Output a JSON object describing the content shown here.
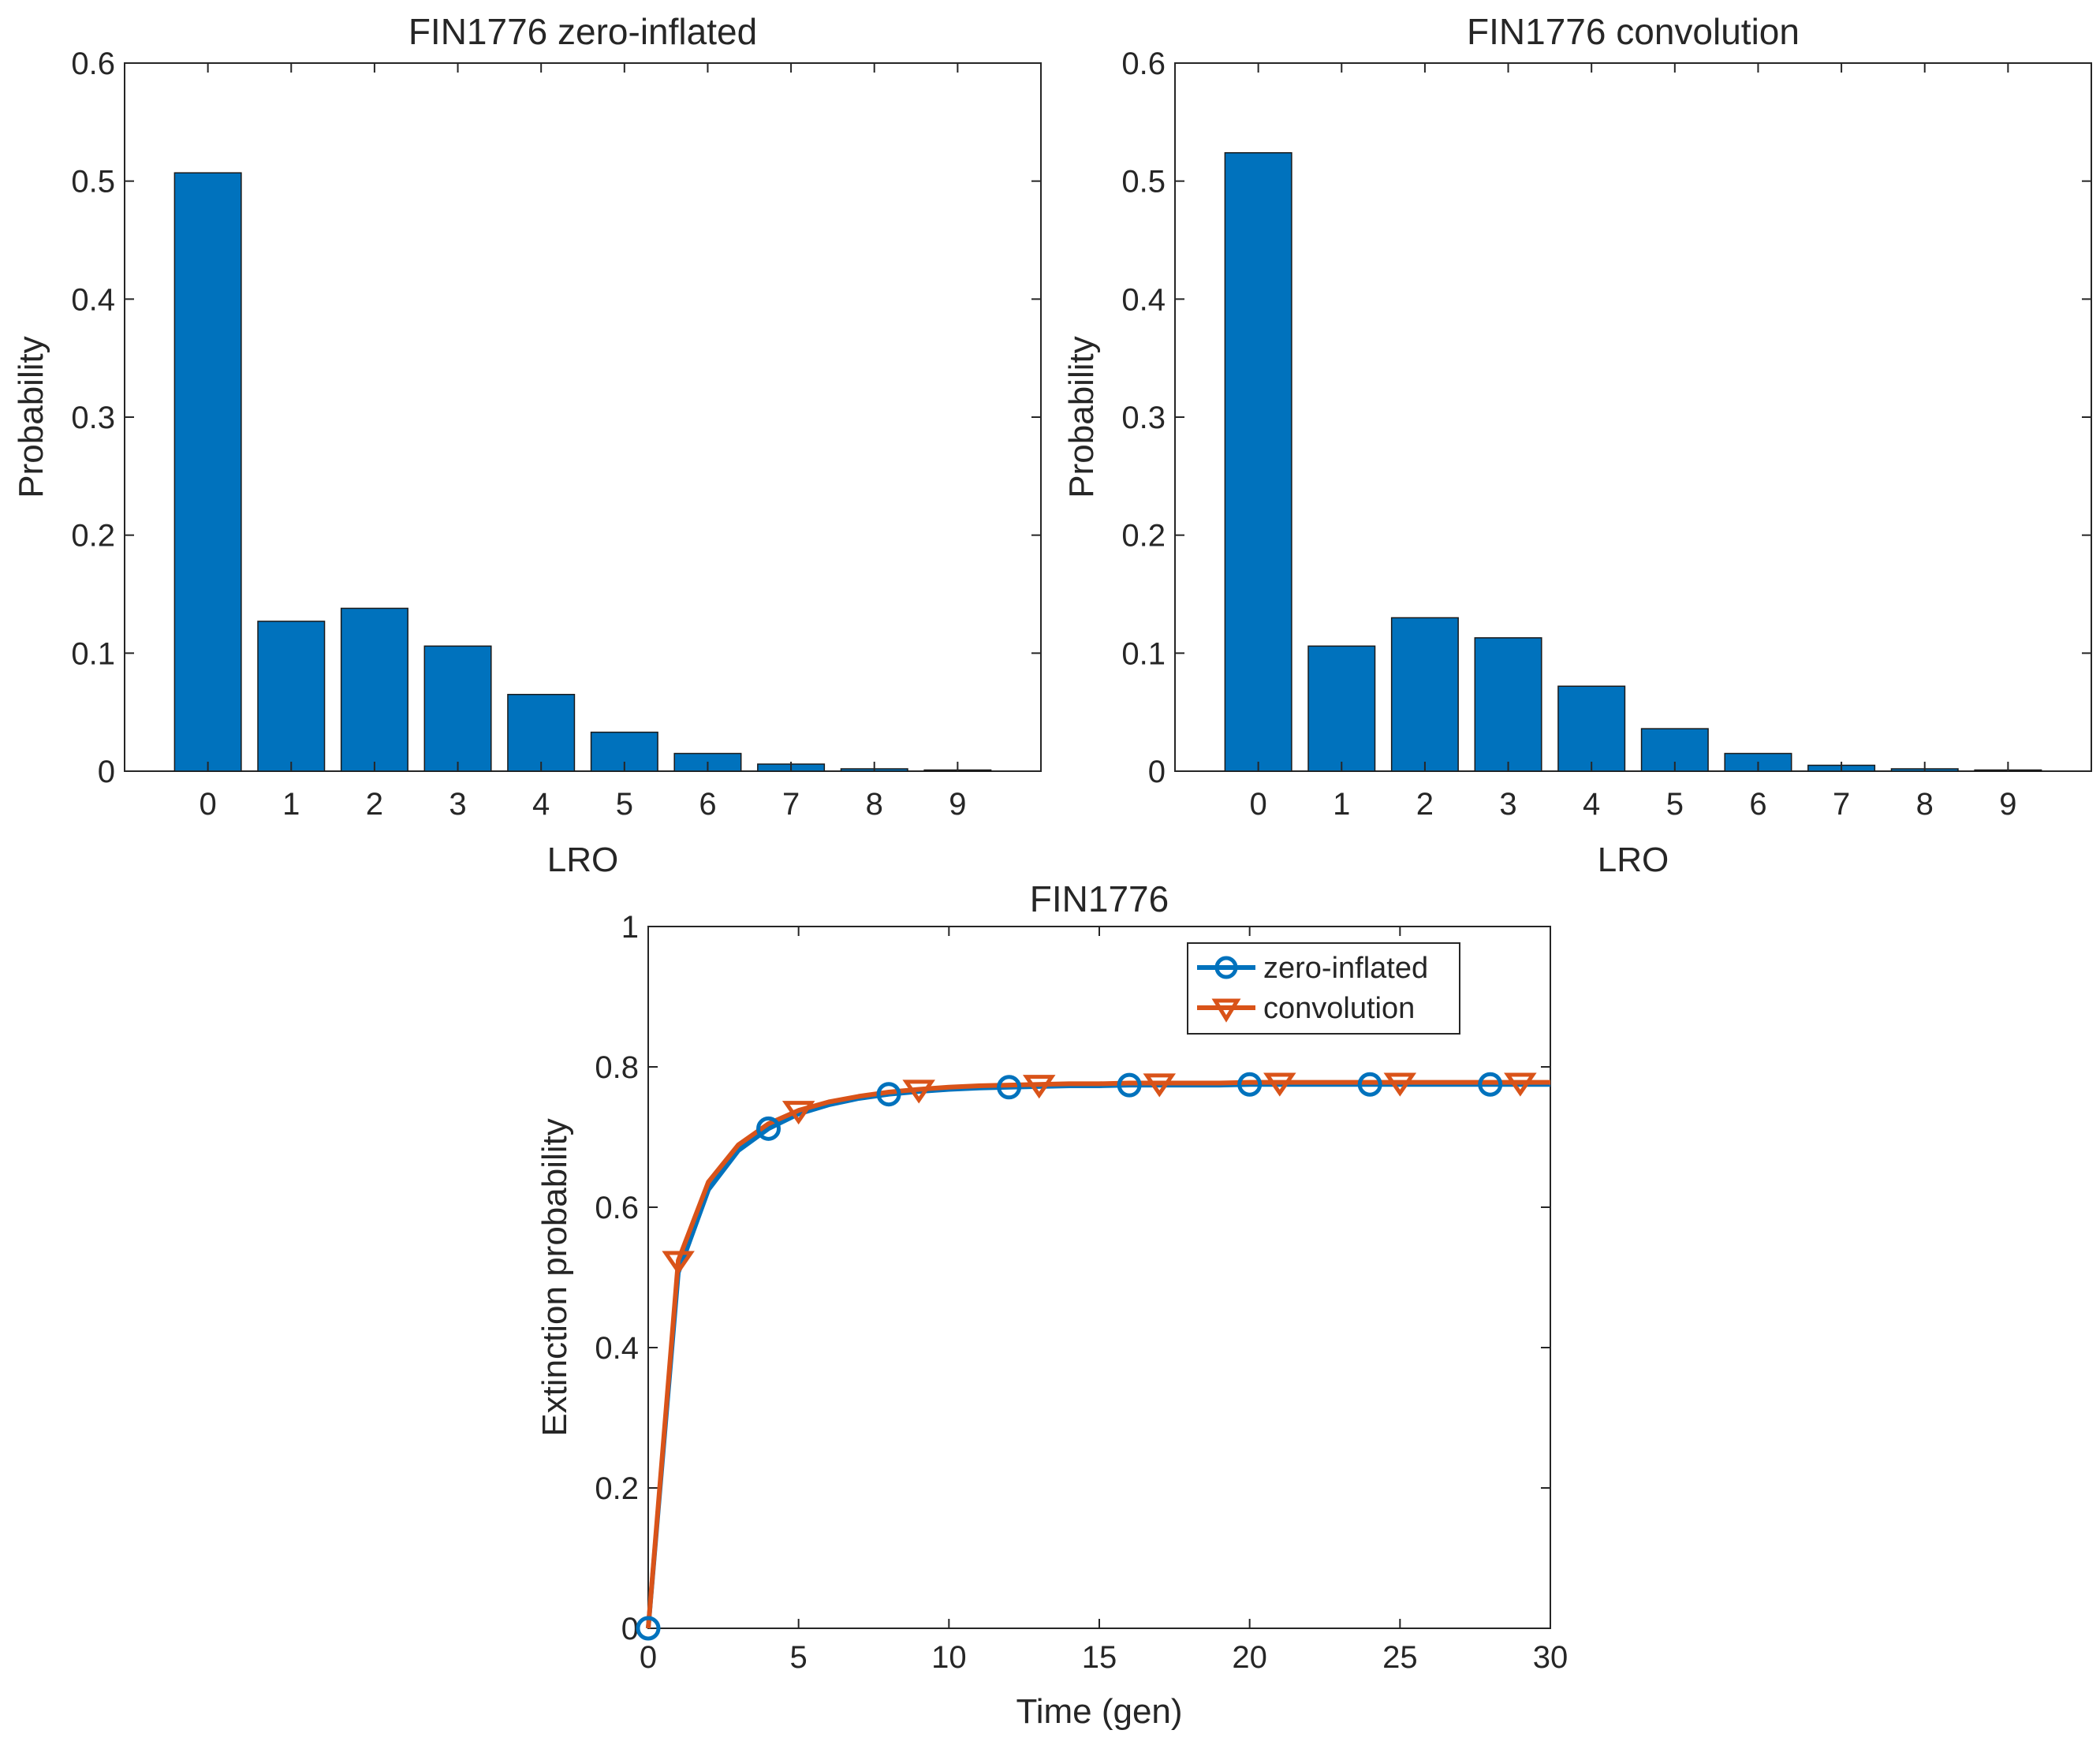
{
  "colors": {
    "blue": "#0072BD",
    "orange": "#D95319",
    "axis": "#262626",
    "background": "#ffffff"
  },
  "chart_data": [
    {
      "type": "bar",
      "title": "FIN1776 zero-inflated",
      "xlabel": "LRO",
      "ylabel": "Probability",
      "categories": [
        "0",
        "1",
        "2",
        "3",
        "4",
        "5",
        "6",
        "7",
        "8",
        "9"
      ],
      "values": [
        0.507,
        0.127,
        0.138,
        0.106,
        0.065,
        0.033,
        0.015,
        0.006,
        0.002,
        0.001
      ],
      "xlim": [
        -1,
        10
      ],
      "ylim": [
        0,
        0.6
      ],
      "yticks": [
        "0",
        "0.1",
        "0.2",
        "0.3",
        "0.4",
        "0.5",
        "0.6"
      ],
      "grid": false
    },
    {
      "type": "bar",
      "title": "FIN1776 convolution",
      "xlabel": "LRO",
      "ylabel": "Probability",
      "categories": [
        "0",
        "1",
        "2",
        "3",
        "4",
        "5",
        "6",
        "7",
        "8",
        "9"
      ],
      "values": [
        0.524,
        0.106,
        0.13,
        0.113,
        0.072,
        0.036,
        0.015,
        0.005,
        0.002,
        0.001
      ],
      "xlim": [
        -1,
        10
      ],
      "ylim": [
        0,
        0.6
      ],
      "yticks": [
        "0",
        "0.1",
        "0.2",
        "0.3",
        "0.4",
        "0.5",
        "0.6"
      ],
      "grid": false
    },
    {
      "type": "line",
      "title": "FIN1776",
      "xlabel": "Time (gen)",
      "ylabel": "Extinction probability",
      "xlim": [
        0,
        30
      ],
      "ylim": [
        0,
        1
      ],
      "xticks": [
        "0",
        "5",
        "10",
        "15",
        "20",
        "25",
        "30"
      ],
      "yticks": [
        "0",
        "0.2",
        "0.4",
        "0.6",
        "0.8",
        "1"
      ],
      "legend_position": "top-right",
      "grid": false,
      "x": [
        0,
        1,
        2,
        3,
        4,
        5,
        6,
        7,
        8,
        9,
        10,
        11,
        12,
        13,
        14,
        15,
        16,
        17,
        18,
        19,
        20,
        21,
        22,
        23,
        24,
        25,
        26,
        27,
        28,
        29,
        30
      ],
      "series": [
        {
          "name": "zero-inflated",
          "color": "#0072BD",
          "marker": "circle",
          "marker_x": [
            0,
            4,
            8,
            12,
            16,
            20,
            24,
            28
          ],
          "values": [
            0,
            0.507,
            0.625,
            0.681,
            0.712,
            0.733,
            0.746,
            0.755,
            0.761,
            0.765,
            0.768,
            0.77,
            0.771,
            0.772,
            0.773,
            0.773,
            0.774,
            0.774,
            0.774,
            0.774,
            0.775,
            0.775,
            0.775,
            0.775,
            0.775,
            0.775,
            0.775,
            0.775,
            0.775,
            0.775,
            0.775
          ]
        },
        {
          "name": "convolution",
          "color": "#D95319",
          "marker": "triangle-down",
          "marker_x": [
            1,
            5,
            9,
            13,
            17,
            21,
            25,
            29
          ],
          "values": [
            0,
            0.524,
            0.636,
            0.689,
            0.719,
            0.738,
            0.75,
            0.758,
            0.764,
            0.768,
            0.771,
            0.773,
            0.774,
            0.775,
            0.776,
            0.776,
            0.777,
            0.777,
            0.777,
            0.777,
            0.778,
            0.778,
            0.778,
            0.778,
            0.778,
            0.778,
            0.778,
            0.778,
            0.778,
            0.778,
            0.778
          ]
        }
      ]
    }
  ]
}
